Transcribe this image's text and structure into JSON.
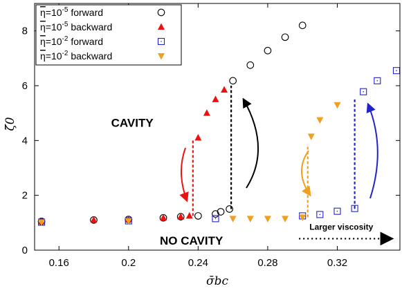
{
  "chart_data": {
    "type": "scatter",
    "xlabel": "σ̄bc",
    "ylabel": "ζ̄0",
    "xlim": [
      0.146,
      0.356
    ],
    "ylim": [
      0,
      9
    ],
    "xticks": [
      0.16,
      0.2,
      0.24,
      0.28,
      0.32
    ],
    "xtick_labels": [
      "0.16",
      "0.2",
      "0.24",
      "0.28",
      "0.32"
    ],
    "yticks": [
      0,
      2,
      4,
      6,
      8
    ],
    "ytick_labels": [
      "0",
      "2",
      "4",
      "6",
      "8"
    ],
    "grid": false,
    "legend_placement": "top-left",
    "series": [
      {
        "name": "η=10⁻⁵ forward",
        "legend_prefix": "η",
        "legend_exp": "-5",
        "legend_suffix": " forward",
        "marker": "circle-open",
        "color": "#000000",
        "x": [
          0.15,
          0.18,
          0.2,
          0.22,
          0.23,
          0.24,
          0.25,
          0.253,
          0.258,
          0.26,
          0.27,
          0.28,
          0.29,
          0.3
        ],
        "y": [
          1.05,
          1.1,
          1.12,
          1.18,
          1.22,
          1.25,
          1.32,
          1.4,
          1.5,
          6.18,
          6.75,
          7.28,
          7.77,
          8.2
        ]
      },
      {
        "name": "η=10⁻⁵ backward",
        "legend_prefix": "η",
        "legend_exp": "-5",
        "legend_suffix": " backward",
        "marker": "triangle-up",
        "color": "#ee1111",
        "x": [
          0.15,
          0.18,
          0.2,
          0.22,
          0.23,
          0.235,
          0.24,
          0.245,
          0.25,
          0.255
        ],
        "y": [
          1.05,
          1.1,
          1.12,
          1.18,
          1.22,
          1.25,
          4.1,
          5.0,
          5.5,
          5.85
        ]
      },
      {
        "name": "η=10⁻² forward",
        "legend_prefix": "η",
        "legend_exp": "-2",
        "legend_suffix": " forward",
        "marker": "square-open",
        "color": "#2222cc",
        "x": [
          0.15,
          0.2,
          0.25,
          0.3,
          0.31,
          0.32,
          0.33,
          0.335,
          0.343,
          0.354
        ],
        "y": [
          1.02,
          1.07,
          1.15,
          1.25,
          1.3,
          1.42,
          1.52,
          5.78,
          6.18,
          6.55
        ]
      },
      {
        "name": "η=10⁻² backward",
        "legend_prefix": "η",
        "legend_exp": "-2",
        "legend_suffix": " backward",
        "marker": "triangle-down",
        "color": "#f0a020",
        "x": [
          0.15,
          0.2,
          0.26,
          0.27,
          0.28,
          0.29,
          0.3,
          0.305,
          0.31,
          0.32
        ],
        "y": [
          1.02,
          1.07,
          1.15,
          1.15,
          1.15,
          1.15,
          1.2,
          4.15,
          4.75,
          5.3
        ]
      }
    ],
    "dashed_lines": [
      {
        "x": 0.237,
        "y0": 1.25,
        "y1": 4.0,
        "color": "#ee1111"
      },
      {
        "x": 0.259,
        "y0": 1.5,
        "y1": 6.0,
        "color": "#000000"
      },
      {
        "x": 0.303,
        "y0": 1.2,
        "y1": 3.85,
        "color": "#f0a020"
      },
      {
        "x": 0.33,
        "y0": 1.52,
        "y1": 5.5,
        "color": "#2222cc"
      }
    ],
    "annotations": [
      {
        "text": "CAVITY",
        "x": 0.19,
        "y": 4.5,
        "size": "big"
      },
      {
        "text": "NO CAVITY",
        "x": 0.218,
        "y": 0.2,
        "size": "big"
      },
      {
        "text": "Larger viscosity",
        "x": 0.304,
        "y": 0.75,
        "size": "small"
      }
    ],
    "viscosity_arrow": {
      "x0": 0.298,
      "x1": 0.351,
      "y": 0.42
    }
  }
}
